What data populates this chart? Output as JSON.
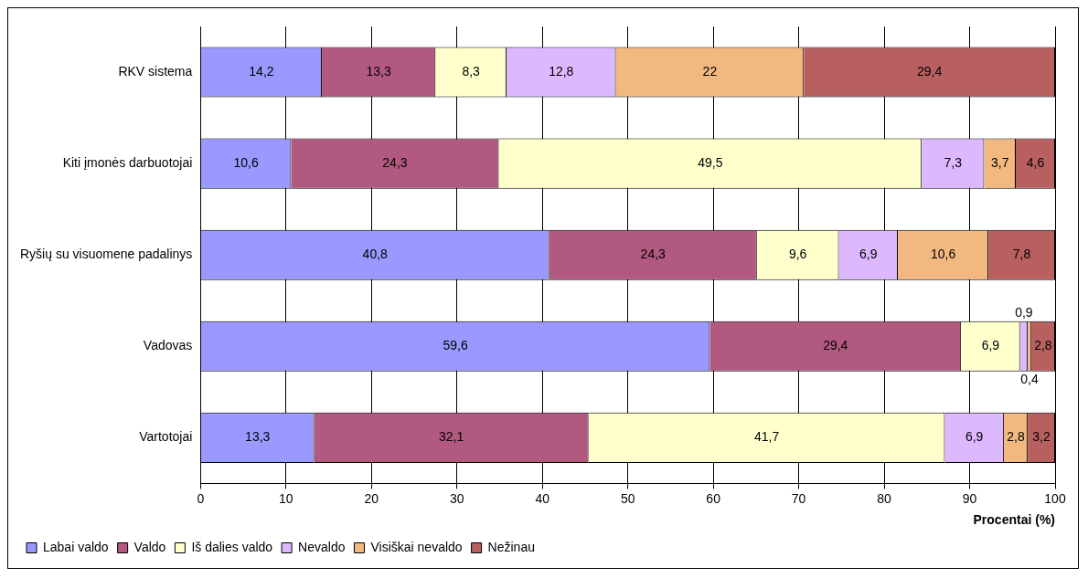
{
  "chart_data": {
    "type": "bar",
    "orientation": "horizontal",
    "stacked": true,
    "xlabel": "Procentai (%)",
    "categories": [
      "RKV sistema",
      "Kiti įmonės darbuotojai",
      "Ryšių su visuomene padalinys",
      "Vadovas",
      "Vartotojai"
    ],
    "series": [
      {
        "name": "Labai valdo",
        "color": "#9999ff",
        "values": [
          14.2,
          10.6,
          40.8,
          59.6,
          13.3
        ],
        "value_labels": [
          "14,2",
          "10,6",
          "40,8",
          "59,6",
          "13,3"
        ]
      },
      {
        "name": "Valdo",
        "color": "#b25980",
        "values": [
          13.3,
          24.3,
          24.3,
          29.4,
          32.1
        ],
        "value_labels": [
          "13,3",
          "24,3",
          "24,3",
          "29,4",
          "32,1"
        ]
      },
      {
        "name": "Iš dalies valdo",
        "color": "#ffffcc",
        "values": [
          8.3,
          49.5,
          9.6,
          6.9,
          41.7
        ],
        "value_labels": [
          "8,3",
          "49,5",
          "9,6",
          "6,9",
          "41,7"
        ]
      },
      {
        "name": "Nevaldo",
        "color": "#ddb8ff",
        "values": [
          12.8,
          7.3,
          6.9,
          0.9,
          6.9
        ],
        "value_labels": [
          "12,8",
          "7,3",
          "6,9",
          "0,9",
          "6,9"
        ]
      },
      {
        "name": "Visiškai nevaldo",
        "color": "#f2b880",
        "values": [
          22,
          3.7,
          10.6,
          0.4,
          2.8
        ],
        "value_labels": [
          "22",
          "3,7",
          "10,6",
          "0,4",
          "2,8"
        ]
      },
      {
        "name": "Nežinau",
        "color": "#b86060",
        "values": [
          29.4,
          4.6,
          7.8,
          2.8,
          3.2
        ],
        "value_labels": [
          "29,4",
          "4,6",
          "7,8",
          "2,8",
          "3,2"
        ]
      }
    ],
    "xlim": [
      0,
      100
    ],
    "xticks": [
      0,
      10,
      20,
      30,
      40,
      50,
      60,
      70,
      80,
      90,
      100
    ],
    "grid": "x",
    "legend": "bottom"
  }
}
